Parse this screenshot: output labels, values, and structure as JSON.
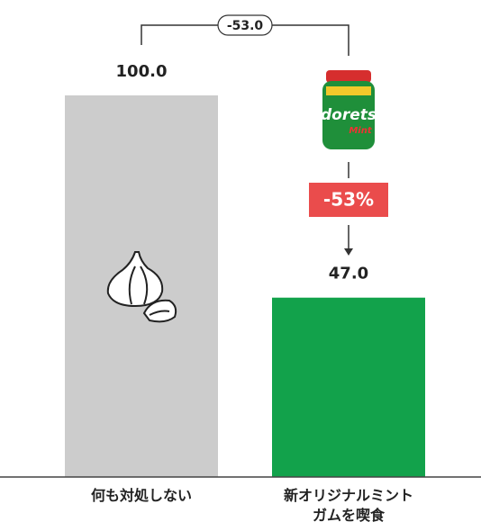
{
  "chart_data": {
    "type": "bar",
    "categories": [
      "何も対処しない",
      "新オリジナルミント\nガムを喫食"
    ],
    "values": [
      100,
      47
    ],
    "value_labels": [
      "100.0",
      "47.0"
    ],
    "colors": [
      "#cccccc",
      "#12a24b"
    ],
    "ylim": [
      0,
      100
    ],
    "annotations": {
      "difference": "-53.0",
      "percent_change": "-53%"
    }
  }
}
